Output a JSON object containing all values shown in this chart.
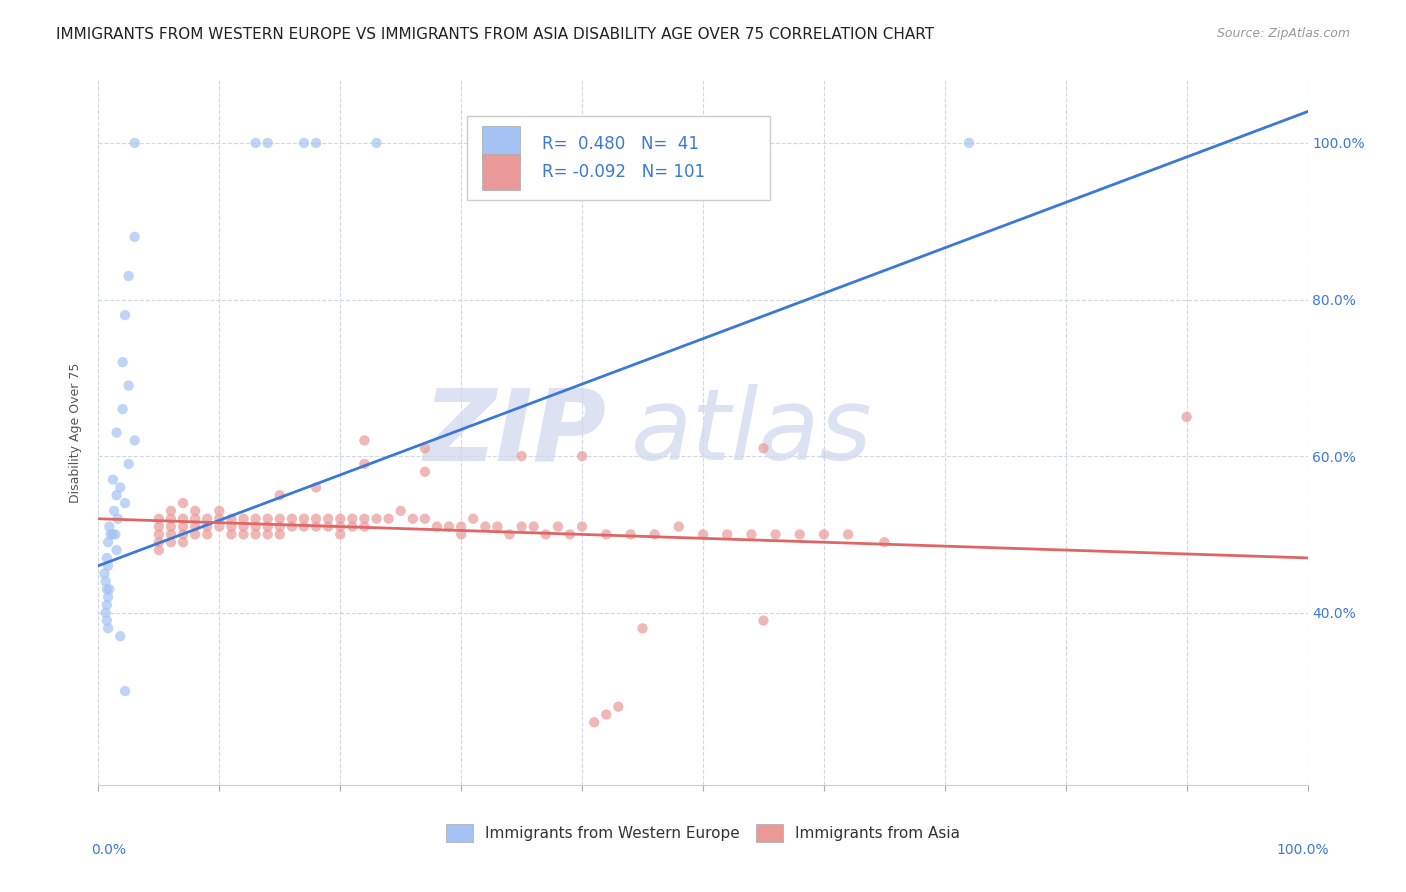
{
  "title": "IMMIGRANTS FROM WESTERN EUROPE VS IMMIGRANTS FROM ASIA DISABILITY AGE OVER 75 CORRELATION CHART",
  "source": "Source: ZipAtlas.com",
  "ylabel": "Disability Age Over 75",
  "xlim": [
    0.0,
    1.0
  ],
  "ylim": [
    0.18,
    1.08
  ],
  "yticks": [
    0.4,
    0.6,
    0.8,
    1.0
  ],
  "ytick_labels": [
    "40.0%",
    "60.0%",
    "80.0%",
    "100.0%"
  ],
  "xticks": [
    0.0,
    0.1,
    0.2,
    0.3,
    0.4,
    0.5,
    0.6,
    0.7,
    0.8,
    0.9,
    1.0
  ],
  "western_europe_color": "#a4c2f4",
  "asia_color": "#ea9999",
  "trendline_we_color": "#3c78d8",
  "trendline_asia_color": "#e06666",
  "legend_text_color": "#3c78d8",
  "watermark_zip": "ZIP",
  "watermark_atlas": "atlas",
  "we_R": 0.48,
  "we_N": 41,
  "asia_R": -0.092,
  "asia_N": 101,
  "we_trendline": [
    [
      0.0,
      0.46
    ],
    [
      1.0,
      1.04
    ]
  ],
  "asia_trendline": [
    [
      0.0,
      0.52
    ],
    [
      1.0,
      0.47
    ]
  ],
  "we_scatter": [
    [
      0.03,
      1.0
    ],
    [
      0.13,
      1.0
    ],
    [
      0.14,
      1.0
    ],
    [
      0.17,
      1.0
    ],
    [
      0.18,
      1.0
    ],
    [
      0.23,
      1.0
    ],
    [
      0.72,
      1.0
    ],
    [
      0.03,
      0.88
    ],
    [
      0.025,
      0.83
    ],
    [
      0.022,
      0.78
    ],
    [
      0.02,
      0.72
    ],
    [
      0.025,
      0.69
    ],
    [
      0.02,
      0.66
    ],
    [
      0.015,
      0.63
    ],
    [
      0.03,
      0.62
    ],
    [
      0.025,
      0.59
    ],
    [
      0.012,
      0.57
    ],
    [
      0.018,
      0.56
    ],
    [
      0.015,
      0.55
    ],
    [
      0.022,
      0.54
    ],
    [
      0.013,
      0.53
    ],
    [
      0.016,
      0.52
    ],
    [
      0.009,
      0.51
    ],
    [
      0.01,
      0.5
    ],
    [
      0.012,
      0.5
    ],
    [
      0.014,
      0.5
    ],
    [
      0.008,
      0.49
    ],
    [
      0.015,
      0.48
    ],
    [
      0.007,
      0.47
    ],
    [
      0.008,
      0.46
    ],
    [
      0.005,
      0.45
    ],
    [
      0.006,
      0.44
    ],
    [
      0.007,
      0.43
    ],
    [
      0.009,
      0.43
    ],
    [
      0.008,
      0.42
    ],
    [
      0.007,
      0.41
    ],
    [
      0.006,
      0.4
    ],
    [
      0.007,
      0.39
    ],
    [
      0.008,
      0.38
    ],
    [
      0.018,
      0.37
    ],
    [
      0.022,
      0.3
    ]
  ],
  "asia_scatter": [
    [
      0.9,
      0.65
    ],
    [
      0.55,
      0.61
    ],
    [
      0.4,
      0.6
    ],
    [
      0.35,
      0.6
    ],
    [
      0.27,
      0.61
    ],
    [
      0.27,
      0.58
    ],
    [
      0.22,
      0.62
    ],
    [
      0.22,
      0.59
    ],
    [
      0.18,
      0.56
    ],
    [
      0.15,
      0.55
    ],
    [
      0.55,
      0.39
    ],
    [
      0.45,
      0.38
    ],
    [
      0.43,
      0.28
    ],
    [
      0.42,
      0.27
    ],
    [
      0.41,
      0.26
    ],
    [
      0.05,
      0.52
    ],
    [
      0.05,
      0.51
    ],
    [
      0.05,
      0.5
    ],
    [
      0.05,
      0.49
    ],
    [
      0.05,
      0.48
    ],
    [
      0.06,
      0.53
    ],
    [
      0.06,
      0.52
    ],
    [
      0.06,
      0.51
    ],
    [
      0.06,
      0.5
    ],
    [
      0.06,
      0.49
    ],
    [
      0.07,
      0.54
    ],
    [
      0.07,
      0.52
    ],
    [
      0.07,
      0.51
    ],
    [
      0.07,
      0.5
    ],
    [
      0.07,
      0.49
    ],
    [
      0.08,
      0.53
    ],
    [
      0.08,
      0.52
    ],
    [
      0.08,
      0.51
    ],
    [
      0.08,
      0.5
    ],
    [
      0.09,
      0.52
    ],
    [
      0.09,
      0.51
    ],
    [
      0.09,
      0.5
    ],
    [
      0.1,
      0.53
    ],
    [
      0.1,
      0.52
    ],
    [
      0.1,
      0.51
    ],
    [
      0.11,
      0.52
    ],
    [
      0.11,
      0.51
    ],
    [
      0.11,
      0.5
    ],
    [
      0.12,
      0.52
    ],
    [
      0.12,
      0.51
    ],
    [
      0.12,
      0.5
    ],
    [
      0.13,
      0.52
    ],
    [
      0.13,
      0.51
    ],
    [
      0.13,
      0.5
    ],
    [
      0.14,
      0.52
    ],
    [
      0.14,
      0.51
    ],
    [
      0.14,
      0.5
    ],
    [
      0.15,
      0.52
    ],
    [
      0.15,
      0.51
    ],
    [
      0.15,
      0.5
    ],
    [
      0.16,
      0.52
    ],
    [
      0.16,
      0.51
    ],
    [
      0.17,
      0.52
    ],
    [
      0.17,
      0.51
    ],
    [
      0.18,
      0.52
    ],
    [
      0.18,
      0.51
    ],
    [
      0.19,
      0.52
    ],
    [
      0.19,
      0.51
    ],
    [
      0.2,
      0.52
    ],
    [
      0.2,
      0.51
    ],
    [
      0.2,
      0.5
    ],
    [
      0.21,
      0.52
    ],
    [
      0.21,
      0.51
    ],
    [
      0.22,
      0.52
    ],
    [
      0.22,
      0.51
    ],
    [
      0.23,
      0.52
    ],
    [
      0.24,
      0.52
    ],
    [
      0.25,
      0.53
    ],
    [
      0.26,
      0.52
    ],
    [
      0.27,
      0.52
    ],
    [
      0.28,
      0.51
    ],
    [
      0.29,
      0.51
    ],
    [
      0.3,
      0.51
    ],
    [
      0.3,
      0.5
    ],
    [
      0.31,
      0.52
    ],
    [
      0.32,
      0.51
    ],
    [
      0.33,
      0.51
    ],
    [
      0.34,
      0.5
    ],
    [
      0.35,
      0.51
    ],
    [
      0.36,
      0.51
    ],
    [
      0.37,
      0.5
    ],
    [
      0.38,
      0.51
    ],
    [
      0.39,
      0.5
    ],
    [
      0.4,
      0.51
    ],
    [
      0.42,
      0.5
    ],
    [
      0.44,
      0.5
    ],
    [
      0.46,
      0.5
    ],
    [
      0.48,
      0.51
    ],
    [
      0.5,
      0.5
    ],
    [
      0.52,
      0.5
    ],
    [
      0.54,
      0.5
    ],
    [
      0.56,
      0.5
    ],
    [
      0.58,
      0.5
    ],
    [
      0.6,
      0.5
    ],
    [
      0.62,
      0.5
    ],
    [
      0.65,
      0.49
    ]
  ],
  "background_color": "#ffffff",
  "grid_color": "#d0d8e8",
  "title_fontsize": 11,
  "axis_label_fontsize": 9,
  "legend_fontsize": 12,
  "scatter_size": 55
}
